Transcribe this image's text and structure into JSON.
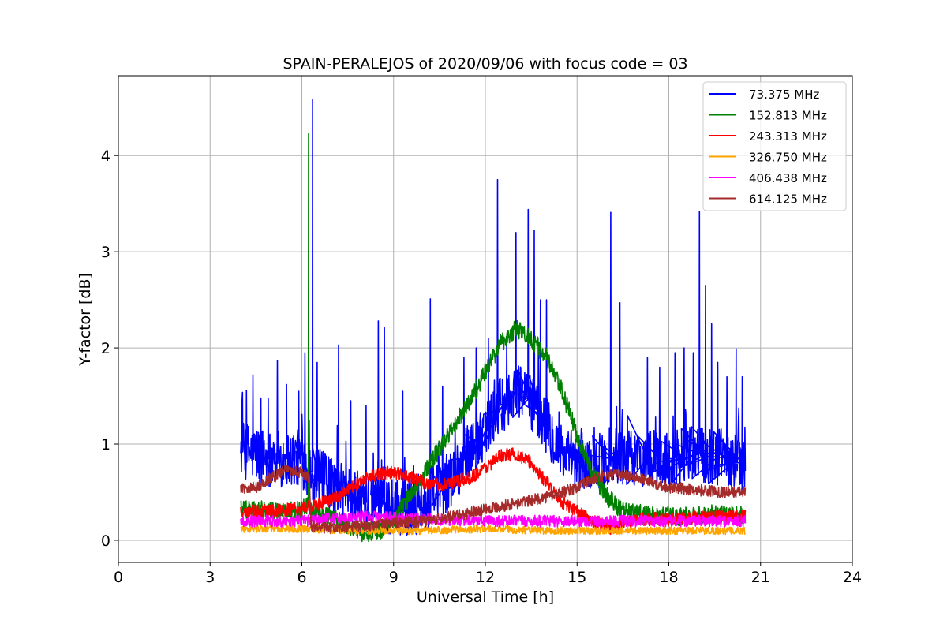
{
  "chart_data": {
    "type": "line",
    "title": "SPAIN-PERALEJOS of 2020/09/06 with focus code = 03",
    "xlabel": "Universal Time [h]",
    "ylabel": "Y-factor [dB]",
    "xlim": [
      0,
      24
    ],
    "ylim": [
      -0.23,
      4.83
    ],
    "xticks": [
      0,
      3,
      6,
      9,
      12,
      15,
      18,
      21,
      24
    ],
    "yticks": [
      0,
      1,
      2,
      3,
      4
    ],
    "grid": true,
    "legend_position": "top-right",
    "series": [
      {
        "name": " 73.375 MHz",
        "color": "#0000ff",
        "base": [
          [
            4.0,
            0.95
          ],
          [
            5.0,
            0.85
          ],
          [
            6.0,
            0.85
          ],
          [
            6.2,
            0.75
          ],
          [
            7.0,
            0.55
          ],
          [
            8.0,
            0.4
          ],
          [
            9.0,
            0.35
          ],
          [
            10.0,
            0.35
          ],
          [
            10.5,
            0.5
          ],
          [
            11.0,
            0.7
          ],
          [
            11.5,
            0.95
          ],
          [
            12.0,
            1.15
          ],
          [
            12.5,
            1.4
          ],
          [
            13.0,
            1.55
          ],
          [
            13.5,
            1.45
          ],
          [
            14.0,
            1.2
          ],
          [
            14.5,
            0.9
          ],
          [
            15.0,
            0.75
          ],
          [
            16.0,
            0.85
          ],
          [
            17.0,
            0.85
          ],
          [
            18.0,
            0.85
          ],
          [
            19.0,
            0.9
          ],
          [
            20.0,
            0.85
          ],
          [
            20.5,
            0.8
          ]
        ],
        "noise": 0.3,
        "spikes": [
          [
            4.4,
            1.72
          ],
          [
            4.9,
            1.48
          ],
          [
            5.2,
            1.87
          ],
          [
            5.5,
            1.62
          ],
          [
            5.9,
            1.55
          ],
          [
            6.1,
            1.95
          ],
          [
            6.35,
            4.58
          ],
          [
            6.5,
            1.85
          ],
          [
            7.2,
            2.03
          ],
          [
            7.6,
            1.45
          ],
          [
            8.1,
            1.4
          ],
          [
            8.5,
            2.28
          ],
          [
            8.7,
            2.21
          ],
          [
            9.3,
            1.55
          ],
          [
            10.2,
            2.51
          ],
          [
            10.6,
            1.6
          ],
          [
            11.3,
            1.9
          ],
          [
            11.7,
            2.0
          ],
          [
            12.1,
            2.1
          ],
          [
            12.4,
            3.75
          ],
          [
            12.7,
            2.1
          ],
          [
            13.0,
            3.2
          ],
          [
            13.4,
            3.44
          ],
          [
            13.6,
            3.22
          ],
          [
            13.8,
            2.5
          ],
          [
            14.0,
            2.5
          ],
          [
            16.1,
            3.41
          ],
          [
            16.4,
            2.47
          ],
          [
            17.3,
            1.9
          ],
          [
            17.7,
            1.8
          ],
          [
            18.2,
            1.95
          ],
          [
            18.5,
            2.0
          ],
          [
            18.8,
            1.95
          ],
          [
            19.0,
            3.42
          ],
          [
            19.2,
            2.65
          ],
          [
            19.4,
            2.25
          ],
          [
            19.6,
            1.85
          ],
          [
            19.9,
            1.7
          ],
          [
            20.2,
            1.99
          ],
          [
            20.4,
            1.7
          ]
        ]
      },
      {
        "name": "152.813 MHz",
        "color": "#008000",
        "base": [
          [
            4.0,
            0.33
          ],
          [
            5.0,
            0.3
          ],
          [
            6.0,
            0.32
          ],
          [
            6.2,
            0.35
          ],
          [
            6.5,
            0.3
          ],
          [
            7.5,
            0.15
          ],
          [
            8.0,
            0.08
          ],
          [
            8.5,
            0.1
          ],
          [
            9.0,
            0.2
          ],
          [
            9.5,
            0.45
          ],
          [
            10.0,
            0.7
          ],
          [
            10.5,
            0.95
          ],
          [
            11.0,
            1.2
          ],
          [
            11.5,
            1.45
          ],
          [
            12.0,
            1.75
          ],
          [
            12.5,
            2.05
          ],
          [
            13.0,
            2.2
          ],
          [
            13.5,
            2.1
          ],
          [
            14.0,
            1.9
          ],
          [
            14.5,
            1.55
          ],
          [
            15.0,
            1.1
          ],
          [
            15.5,
            0.7
          ],
          [
            16.0,
            0.45
          ],
          [
            16.5,
            0.3
          ],
          [
            17.5,
            0.25
          ],
          [
            18.5,
            0.25
          ],
          [
            19.5,
            0.27
          ],
          [
            20.5,
            0.25
          ]
        ],
        "noise": 0.1,
        "spikes": [
          [
            6.22,
            4.23
          ]
        ]
      },
      {
        "name": "243.313 MHz",
        "color": "#ff0000",
        "base": [
          [
            4.0,
            0.3
          ],
          [
            5.0,
            0.3
          ],
          [
            6.0,
            0.33
          ],
          [
            6.3,
            0.35
          ],
          [
            7.0,
            0.42
          ],
          [
            7.5,
            0.52
          ],
          [
            8.0,
            0.62
          ],
          [
            8.5,
            0.7
          ],
          [
            9.0,
            0.7
          ],
          [
            9.5,
            0.67
          ],
          [
            10.0,
            0.6
          ],
          [
            10.5,
            0.58
          ],
          [
            11.0,
            0.6
          ],
          [
            11.5,
            0.65
          ],
          [
            12.0,
            0.75
          ],
          [
            12.5,
            0.88
          ],
          [
            13.0,
            0.9
          ],
          [
            13.5,
            0.8
          ],
          [
            14.0,
            0.6
          ],
          [
            14.5,
            0.4
          ],
          [
            15.0,
            0.3
          ],
          [
            15.5,
            0.2
          ],
          [
            16.0,
            0.12
          ],
          [
            17.0,
            0.22
          ],
          [
            18.0,
            0.22
          ],
          [
            19.0,
            0.24
          ],
          [
            20.5,
            0.25
          ]
        ],
        "noise": 0.07,
        "spikes": []
      },
      {
        "name": "326.750 MHz",
        "color": "#ffa500",
        "base": [
          [
            4.0,
            0.12
          ],
          [
            6.0,
            0.12
          ],
          [
            8.0,
            0.1
          ],
          [
            10.0,
            0.1
          ],
          [
            12.0,
            0.12
          ],
          [
            14.0,
            0.1
          ],
          [
            16.0,
            0.1
          ],
          [
            18.0,
            0.1
          ],
          [
            20.5,
            0.1
          ]
        ],
        "noise": 0.04,
        "spikes": []
      },
      {
        "name": "406.438 MHz",
        "color": "#ff00ff",
        "base": [
          [
            4.0,
            0.2
          ],
          [
            6.0,
            0.2
          ],
          [
            8.0,
            0.25
          ],
          [
            10.0,
            0.22
          ],
          [
            12.0,
            0.2
          ],
          [
            14.0,
            0.2
          ],
          [
            16.0,
            0.2
          ],
          [
            18.0,
            0.2
          ],
          [
            20.5,
            0.2
          ]
        ],
        "noise": 0.06,
        "spikes": []
      },
      {
        "name": "614.125 MHz",
        "color": "#a52a2a",
        "base": [
          [
            4.0,
            0.55
          ],
          [
            4.5,
            0.55
          ],
          [
            5.0,
            0.65
          ],
          [
            5.5,
            0.75
          ],
          [
            6.0,
            0.7
          ],
          [
            6.25,
            0.65
          ],
          [
            6.3,
            0.15
          ],
          [
            7.0,
            0.12
          ],
          [
            8.0,
            0.15
          ],
          [
            9.0,
            0.18
          ],
          [
            10.0,
            0.2
          ],
          [
            11.0,
            0.25
          ],
          [
            12.0,
            0.33
          ],
          [
            13.0,
            0.38
          ],
          [
            14.0,
            0.45
          ],
          [
            15.0,
            0.55
          ],
          [
            15.5,
            0.63
          ],
          [
            16.0,
            0.68
          ],
          [
            16.5,
            0.68
          ],
          [
            17.0,
            0.65
          ],
          [
            17.5,
            0.6
          ],
          [
            18.0,
            0.55
          ],
          [
            19.0,
            0.52
          ],
          [
            20.0,
            0.5
          ],
          [
            20.5,
            0.5
          ]
        ],
        "noise": 0.06,
        "spikes": []
      }
    ]
  }
}
